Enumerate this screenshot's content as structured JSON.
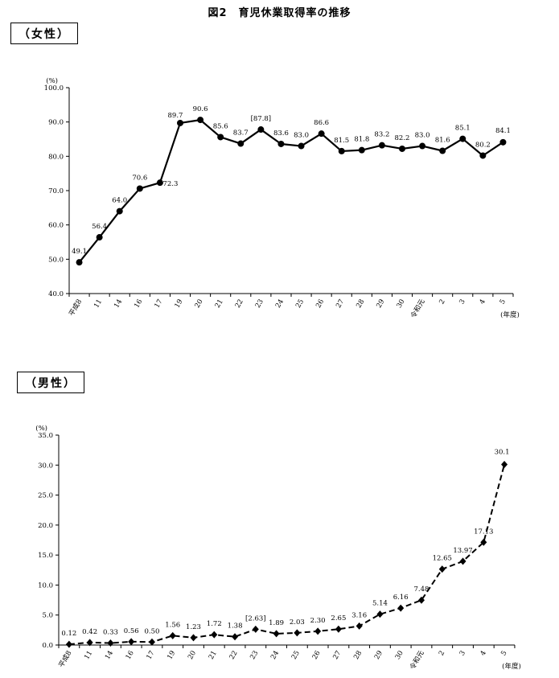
{
  "figure_title": "図2　育児休業取得率の推移",
  "chart_data": [
    {
      "type": "line",
      "section_label": "（女性）",
      "categories": [
        "平成8",
        "11",
        "14",
        "16",
        "17",
        "19",
        "20",
        "21",
        "22",
        "23",
        "24",
        "25",
        "26",
        "27",
        "28",
        "29",
        "30",
        "令和元",
        "2",
        "3",
        "4",
        "5"
      ],
      "values": [
        49.1,
        56.4,
        64.0,
        70.6,
        72.3,
        89.7,
        90.6,
        85.6,
        83.7,
        87.8,
        83.6,
        83.0,
        86.6,
        81.5,
        81.8,
        83.2,
        82.2,
        83.0,
        81.6,
        85.1,
        80.2,
        84.1
      ],
      "data_labels": [
        "49.1",
        "56.4",
        "64.0",
        "70.6",
        "72.3",
        "89.7",
        "90.6",
        "85.6",
        "83.7",
        "[87.8]",
        "83.6",
        "83.0",
        "86.6",
        "81.5",
        "81.8",
        "83.2",
        "82.2",
        "83.0",
        "81.6",
        "85.1",
        "80.2",
        "84.1"
      ],
      "ylim": [
        40.0,
        100.0
      ],
      "yticks": [
        "40.0",
        "50.0",
        "60.0",
        "70.0",
        "80.0",
        "90.0",
        "100.0"
      ],
      "y_unit": "(%)",
      "x_unit": "(年度)",
      "line_style": "solid",
      "marker": "circle",
      "grid": false
    },
    {
      "type": "line",
      "section_label": "（男性）",
      "categories": [
        "平成8",
        "11",
        "14",
        "16",
        "17",
        "19",
        "20",
        "21",
        "22",
        "23",
        "24",
        "25",
        "26",
        "27",
        "28",
        "29",
        "30",
        "令和元",
        "2",
        "3",
        "4",
        "5"
      ],
      "values": [
        0.12,
        0.42,
        0.33,
        0.56,
        0.5,
        1.56,
        1.23,
        1.72,
        1.38,
        2.63,
        1.89,
        2.03,
        2.3,
        2.65,
        3.16,
        5.14,
        6.16,
        7.48,
        12.65,
        13.97,
        17.13,
        30.1
      ],
      "data_labels": [
        "0.12",
        "0.42",
        "0.33",
        "0.56",
        "0.50",
        "1.56",
        "1.23",
        "1.72",
        "1.38",
        "[2.63]",
        "1.89",
        "2.03",
        "2.30",
        "2.65",
        "3.16",
        "5.14",
        "6.16",
        "7.48",
        "12.65",
        "13.97",
        "17.13",
        "30.1"
      ],
      "ylim": [
        0.0,
        35.0
      ],
      "yticks": [
        "0.0",
        "5.0",
        "10.0",
        "15.0",
        "20.0",
        "25.0",
        "30.0",
        "35.0"
      ],
      "y_unit": "(%)",
      "x_unit": "(年度)",
      "line_style": "dashed",
      "marker": "diamond",
      "grid": false
    }
  ]
}
